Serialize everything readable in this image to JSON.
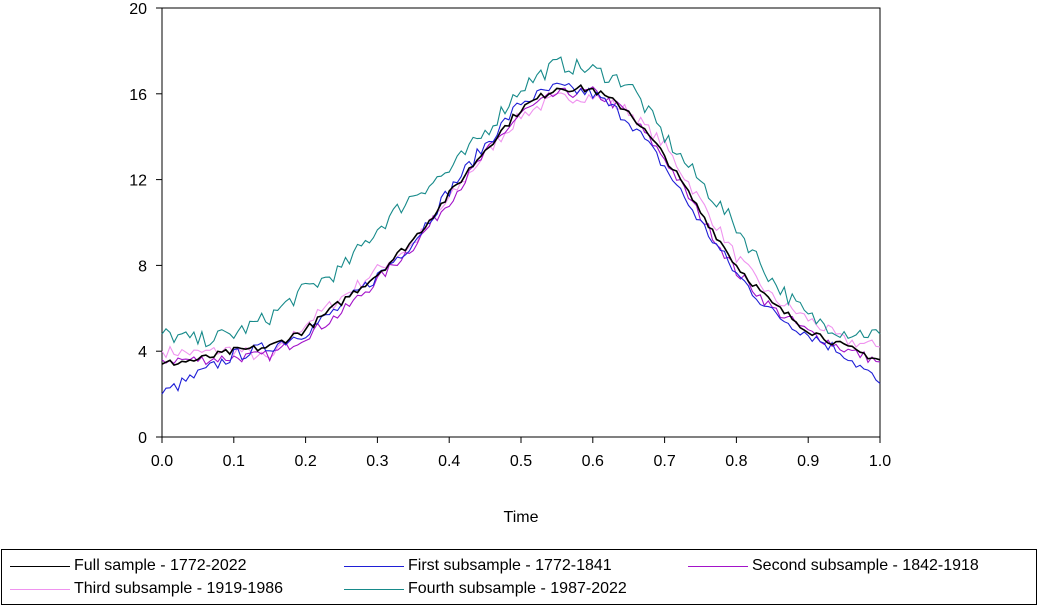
{
  "chart_data": {
    "type": "line",
    "title": "",
    "xlabel": "Time",
    "ylabel": "",
    "xlim": [
      0.0,
      1.0
    ],
    "ylim": [
      0,
      20
    ],
    "x_ticks": [
      "0.0",
      "0.1",
      "0.2",
      "0.3",
      "0.4",
      "0.5",
      "0.6",
      "0.7",
      "0.8",
      "0.9",
      "1.0"
    ],
    "y_ticks": [
      "0",
      "4",
      "8",
      "12",
      "16",
      "20"
    ],
    "grid": false,
    "legend_position": "bottom",
    "x": [
      0.0,
      0.05,
      0.1,
      0.15,
      0.2,
      0.25,
      0.3,
      0.35,
      0.4,
      0.45,
      0.5,
      0.55,
      0.6,
      0.65,
      0.7,
      0.75,
      0.8,
      0.85,
      0.9,
      0.95,
      1.0
    ],
    "series": [
      {
        "name": "Full sample - 1772-2022",
        "color": "#000000",
        "values": [
          3.4,
          3.6,
          4.0,
          4.2,
          5.0,
          6.3,
          7.6,
          9.2,
          11.3,
          13.4,
          15.3,
          16.3,
          16.2,
          15.2,
          13.1,
          10.5,
          8.0,
          6.2,
          5.0,
          4.2,
          3.6
        ]
      },
      {
        "name": "First subsample - 1772-1841",
        "color": "#1f1fd6",
        "values": [
          2.0,
          2.9,
          3.8,
          4.2,
          4.9,
          6.1,
          7.5,
          9.1,
          11.5,
          13.6,
          15.6,
          16.3,
          16.0,
          14.8,
          12.6,
          10.0,
          7.6,
          5.8,
          4.8,
          3.9,
          2.5
        ]
      },
      {
        "name": "Second subsample - 1842-1918",
        "color": "#a313c9",
        "values": [
          3.6,
          3.6,
          3.7,
          3.8,
          4.7,
          5.8,
          7.3,
          8.9,
          11.0,
          13.2,
          15.1,
          16.0,
          16.1,
          15.1,
          13.0,
          10.3,
          7.7,
          6.0,
          4.9,
          4.1,
          3.5
        ]
      },
      {
        "name": "Third subsample - 1919-1986",
        "color": "#ef93ef",
        "values": [
          4.0,
          3.9,
          4.1,
          3.6,
          5.3,
          6.5,
          7.8,
          9.0,
          11.1,
          13.2,
          15.0,
          15.8,
          15.9,
          15.2,
          13.6,
          11.0,
          8.4,
          6.5,
          5.5,
          4.5,
          4.2
        ]
      },
      {
        "name": "Fourth subsample - 1987-2022",
        "color": "#178a8a",
        "values": [
          4.8,
          4.5,
          4.8,
          5.6,
          6.9,
          7.8,
          9.7,
          11.3,
          12.4,
          14.2,
          16.3,
          17.4,
          17.1,
          16.5,
          14.0,
          11.9,
          9.8,
          7.3,
          5.6,
          4.9,
          4.8
        ]
      }
    ]
  }
}
